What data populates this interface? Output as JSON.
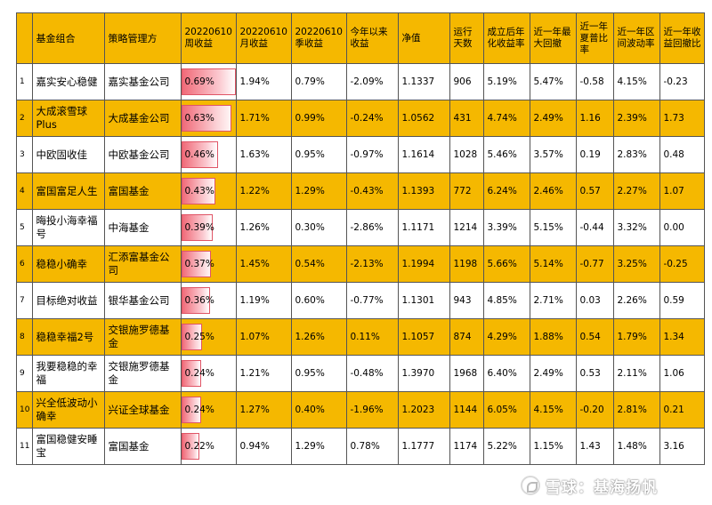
{
  "table": {
    "headers": [
      "",
      "基金组合",
      "策略管理方",
      "20220610周收益",
      "20220610月收益",
      "20220610季收益",
      "今年以来收益",
      "净值",
      "运行天数",
      "成立后年化收益率",
      "近一年最大回撤",
      "近一年夏普比率",
      "近一年区间波动率",
      "近一年收益回撤比"
    ],
    "rows": [
      {
        "idx": "1",
        "name": "嘉实安心稳健",
        "manager": "嘉实基金公司",
        "weekly": "0.69%",
        "weekly_value": 0.69,
        "monthly": "1.94%",
        "quarterly": "0.79%",
        "ytd": "-2.09%",
        "nav": "1.1337",
        "days": "906",
        "annualized": "5.19%",
        "max_dd": "5.47%",
        "sharpe": "-0.58",
        "vol": "4.15%",
        "ret_dd": "-0.23"
      },
      {
        "idx": "2",
        "name": "大成滚雪球Plus",
        "manager": "大成基金公司",
        "weekly": "0.63%",
        "weekly_value": 0.63,
        "monthly": "1.71%",
        "quarterly": "0.99%",
        "ytd": "-0.24%",
        "nav": "1.0562",
        "days": "431",
        "annualized": "4.74%",
        "max_dd": "2.49%",
        "sharpe": "1.16",
        "vol": "2.39%",
        "ret_dd": "1.73"
      },
      {
        "idx": "3",
        "name": "中欧固收佳",
        "manager": "中欧基金公司",
        "weekly": "0.46%",
        "weekly_value": 0.46,
        "monthly": "1.63%",
        "quarterly": "0.95%",
        "ytd": "-0.97%",
        "nav": "1.1614",
        "days": "1028",
        "annualized": "5.46%",
        "max_dd": "3.57%",
        "sharpe": "0.19",
        "vol": "2.83%",
        "ret_dd": "0.48"
      },
      {
        "idx": "4",
        "name": "富国富足人生",
        "manager": "富国基金",
        "weekly": "0.43%",
        "weekly_value": 0.43,
        "monthly": "1.22%",
        "quarterly": "1.29%",
        "ytd": "-0.43%",
        "nav": "1.1393",
        "days": "772",
        "annualized": "6.24%",
        "max_dd": "2.46%",
        "sharpe": "0.57",
        "vol": "2.27%",
        "ret_dd": "1.07"
      },
      {
        "idx": "5",
        "name": "晦投小海幸福号",
        "manager": "中海基金",
        "weekly": "0.39%",
        "weekly_value": 0.39,
        "monthly": "1.26%",
        "quarterly": "0.30%",
        "ytd": "-2.86%",
        "nav": "1.1171",
        "days": "1214",
        "annualized": "3.39%",
        "max_dd": "5.15%",
        "sharpe": "-0.44",
        "vol": "3.32%",
        "ret_dd": "0.00"
      },
      {
        "idx": "6",
        "name": "稳稳小确幸",
        "manager": "汇添富基金公司",
        "weekly": "0.37%",
        "weekly_value": 0.37,
        "monthly": "1.45%",
        "quarterly": "0.54%",
        "ytd": "-2.13%",
        "nav": "1.1994",
        "days": "1198",
        "annualized": "5.66%",
        "max_dd": "5.14%",
        "sharpe": "-0.77",
        "vol": "3.25%",
        "ret_dd": "-0.25"
      },
      {
        "idx": "7",
        "name": "目标绝对收益",
        "manager": "银华基金公司",
        "weekly": "0.36%",
        "weekly_value": 0.36,
        "monthly": "1.19%",
        "quarterly": "0.60%",
        "ytd": "-0.77%",
        "nav": "1.1301",
        "days": "943",
        "annualized": "4.85%",
        "max_dd": "2.71%",
        "sharpe": "0.03",
        "vol": "2.26%",
        "ret_dd": "0.59"
      },
      {
        "idx": "8",
        "name": "稳稳幸福2号",
        "manager": "交银施罗德基金",
        "weekly": "0.25%",
        "weekly_value": 0.25,
        "monthly": "1.07%",
        "quarterly": "1.26%",
        "ytd": "0.11%",
        "nav": "1.1057",
        "days": "874",
        "annualized": "4.29%",
        "max_dd": "1.88%",
        "sharpe": "0.54",
        "vol": "1.79%",
        "ret_dd": "1.34"
      },
      {
        "idx": "9",
        "name": "我要稳稳的幸福",
        "manager": "交银施罗德基金",
        "weekly": "0.24%",
        "weekly_value": 0.24,
        "monthly": "1.21%",
        "quarterly": "0.95%",
        "ytd": "-0.48%",
        "nav": "1.3970",
        "days": "1968",
        "annualized": "6.40%",
        "max_dd": "2.49%",
        "sharpe": "0.53",
        "vol": "2.11%",
        "ret_dd": "1.06"
      },
      {
        "idx": "10",
        "name": "兴全低波动小确幸",
        "manager": "兴证全球基金",
        "weekly": "0.24%",
        "weekly_value": 0.24,
        "monthly": "1.27%",
        "quarterly": "0.40%",
        "ytd": "-1.96%",
        "nav": "1.2023",
        "days": "1144",
        "annualized": "6.05%",
        "max_dd": "4.15%",
        "sharpe": "-0.20",
        "vol": "2.81%",
        "ret_dd": "0.21"
      },
      {
        "idx": "11",
        "name": "富国稳健安睡宝",
        "manager": "富国基金",
        "weekly": "0.22%",
        "weekly_value": 0.22,
        "monthly": "0.94%",
        "quarterly": "1.29%",
        "ytd": "0.78%",
        "nav": "1.1777",
        "days": "1174",
        "annualized": "5.22%",
        "max_dd": "1.15%",
        "sharpe": "1.43",
        "vol": "1.48%",
        "ret_dd": "3.16"
      }
    ]
  },
  "watermark": {
    "text": "雪球：基海扬帆",
    "icon": "snowball-logo-icon"
  },
  "colors": {
    "header_bg": "#f5b800",
    "row_alt_bg": "#f5b800",
    "bar": "#f06a78"
  }
}
